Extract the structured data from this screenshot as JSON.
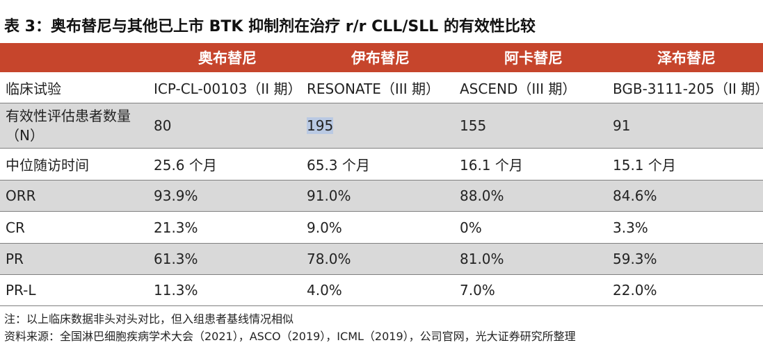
{
  "title": "表 3：奥布替尼与其他已上市 BTK 抑制剂在治疗 r/r CLL/SLL 的有效性比较",
  "table": {
    "headers": [
      "",
      "奥布替尼",
      "伊布替尼",
      "阿卡替尼",
      "泽布替尼"
    ],
    "rows": [
      {
        "label": "临床试验",
        "values": [
          "ICP-CL-00103（II 期）",
          "RESONATE（III 期）",
          "ASCEND（III 期）",
          "BGB-3111-205（II 期）"
        ]
      },
      {
        "label": "有效性评估患者数量（N）",
        "values": [
          "80",
          "195",
          "155",
          "91"
        ]
      },
      {
        "label": "中位随访时间",
        "values": [
          "25.6 个月",
          "65.3 个月",
          "16.1 个月",
          "15.1 个月"
        ]
      },
      {
        "label": "ORR",
        "values": [
          "93.9%",
          "91.0%",
          "88.0%",
          "84.6%"
        ]
      },
      {
        "label": "CR",
        "values": [
          "21.3%",
          "9.0%",
          "0%",
          "3.3%"
        ]
      },
      {
        "label": "PR",
        "values": [
          "61.3%",
          "78.0%",
          "81.0%",
          "59.3%"
        ]
      },
      {
        "label": "PR-L",
        "values": [
          "11.3%",
          "4.0%",
          "7.0%",
          "22.0%"
        ]
      }
    ]
  },
  "notes": {
    "note": "注：以上临床数据非头对头对比，但入组患者基线情况相似",
    "source": "资料来源：全国淋巴细胞疾病学术大会（2021），ASCO（2019），ICML（2019），公司官网，光大证券研究所整理"
  },
  "colors": {
    "header_bg": "#c6452c",
    "shaded_row": "#d9d9d9",
    "selection_highlight": "#b9c9e3"
  }
}
